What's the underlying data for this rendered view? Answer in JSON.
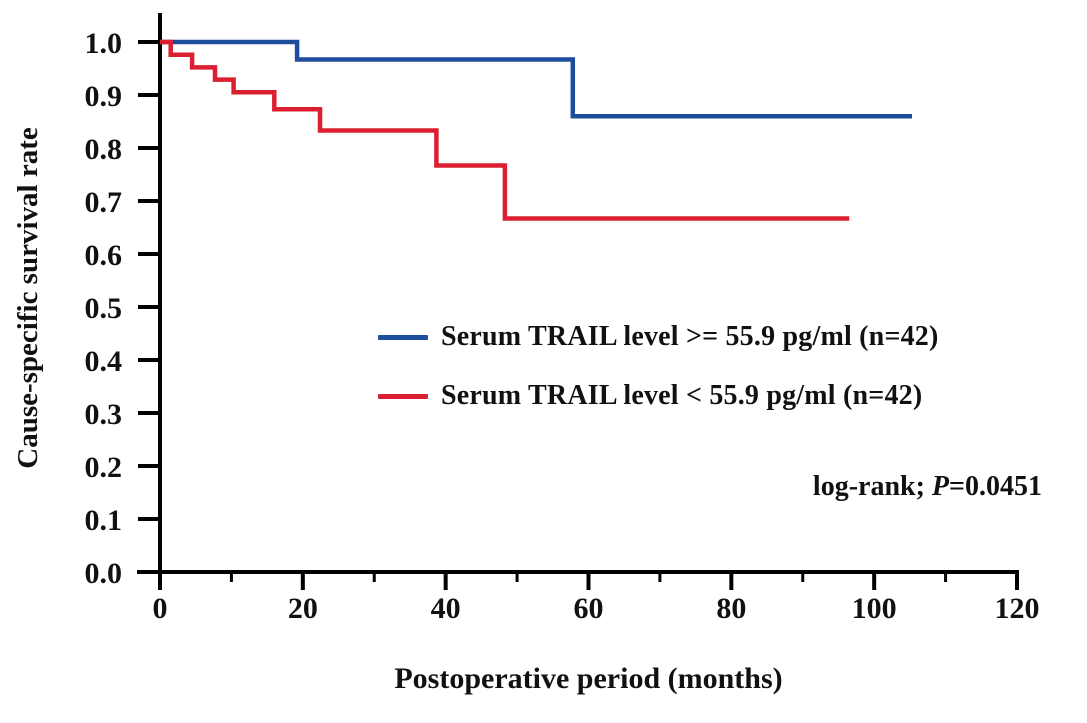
{
  "figure": {
    "x_axis_title": "Postoperative period (months)",
    "y_axis_title": "Cause-specific survival rate"
  },
  "legend": {
    "items": [
      {
        "label": "Serum TRAIL level >= 55.9 pg/ml (n=42)",
        "color": "#1f4d9e"
      },
      {
        "label": "Serum TRAIL level < 55.9 pg/ml (n=42)",
        "color": "#dc1f30"
      }
    ]
  },
  "stats": {
    "prefix": "log-rank; ",
    "p_symbol": "P",
    "p_value": "=0.0451"
  },
  "chart_data": {
    "type": "line",
    "subtype": "kaplan-meier-step",
    "title": "",
    "xlabel": "Postoperative period (months)",
    "ylabel": "Cause-specific survival rate",
    "xlim": [
      0,
      120
    ],
    "ylim": [
      0.0,
      1.0
    ],
    "xticks": [
      0,
      20,
      40,
      60,
      80,
      100,
      120
    ],
    "xtick_labels": [
      "0",
      "20",
      "40",
      "60",
      "80",
      "100",
      "120"
    ],
    "xticks_minor": [
      10,
      30,
      50,
      70,
      90,
      110
    ],
    "yticks": [
      0.0,
      0.1,
      0.2,
      0.3,
      0.4,
      0.5,
      0.6,
      0.7,
      0.8,
      0.9,
      1.0
    ],
    "ytick_labels": [
      "0.0",
      "0.1",
      "0.2",
      "0.3",
      "0.4",
      "0.5",
      "0.6",
      "0.7",
      "0.8",
      "0.9",
      "1.0"
    ],
    "grid": false,
    "legend_position": "center",
    "annotation": "log-rank; P=0.0451",
    "axis_color": "#000000",
    "series": [
      {
        "name": "Serum TRAIL level >= 55.9 pg/ml (n=42)",
        "color": "#1f4d9e",
        "points": [
          [
            0,
            1.0
          ],
          [
            19.2,
            1.0
          ],
          [
            19.2,
            0.967
          ],
          [
            57.8,
            0.967
          ],
          [
            57.8,
            0.86
          ],
          [
            105.3,
            0.86
          ]
        ]
      },
      {
        "name": "Serum TRAIL level < 55.9 pg/ml (n=42)",
        "color": "#dc1f30",
        "points": [
          [
            0,
            1.0
          ],
          [
            1.5,
            1.0
          ],
          [
            1.5,
            0.976
          ],
          [
            4.5,
            0.976
          ],
          [
            4.5,
            0.952
          ],
          [
            7.7,
            0.952
          ],
          [
            7.7,
            0.929
          ],
          [
            10.3,
            0.929
          ],
          [
            10.3,
            0.905
          ],
          [
            16.0,
            0.905
          ],
          [
            16.0,
            0.873
          ],
          [
            22.4,
            0.873
          ],
          [
            22.4,
            0.833
          ],
          [
            38.7,
            0.833
          ],
          [
            38.7,
            0.767
          ],
          [
            48.3,
            0.767
          ],
          [
            48.3,
            0.667
          ],
          [
            96.5,
            0.667
          ]
        ]
      }
    ]
  }
}
